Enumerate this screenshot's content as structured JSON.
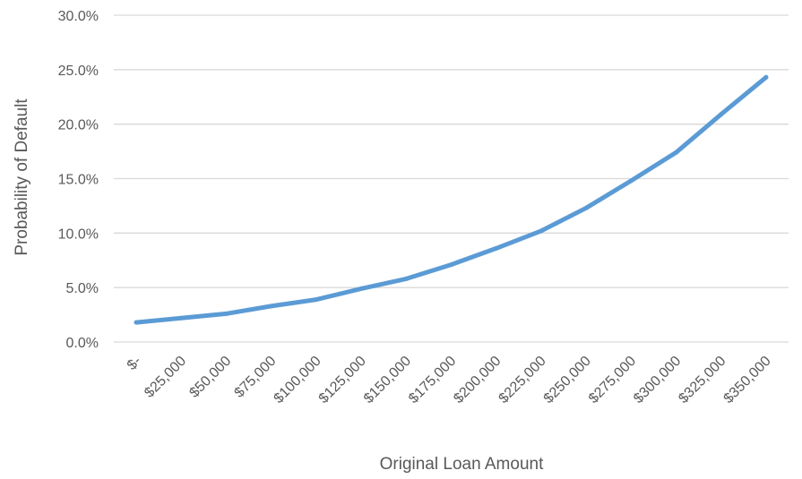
{
  "chart_data": {
    "type": "line",
    "title": "",
    "xlabel": "Original Loan Amount",
    "ylabel": "Probability of Default",
    "categories": [
      "$-",
      "$25,000",
      "$50,000",
      "$75,000",
      "$100,000",
      "$125,000",
      "$150,000",
      "$175,000",
      "$200,000",
      "$225,000",
      "$250,000",
      "$275,000",
      "$300,000",
      "$325,000",
      "$350,000"
    ],
    "y_ticks": [
      "0.0%",
      "5.0%",
      "10.0%",
      "15.0%",
      "20.0%",
      "25.0%",
      "30.0%"
    ],
    "ylim": [
      0,
      30
    ],
    "y_unit": "%",
    "series": [
      {
        "values": [
          1.8,
          2.2,
          2.6,
          3.3,
          3.9,
          4.9,
          5.8,
          7.1,
          8.6,
          10.2,
          12.3,
          14.8,
          17.4,
          20.9,
          24.3
        ],
        "color": "#5b9bd5"
      }
    ],
    "grid": true,
    "legend": "none"
  }
}
